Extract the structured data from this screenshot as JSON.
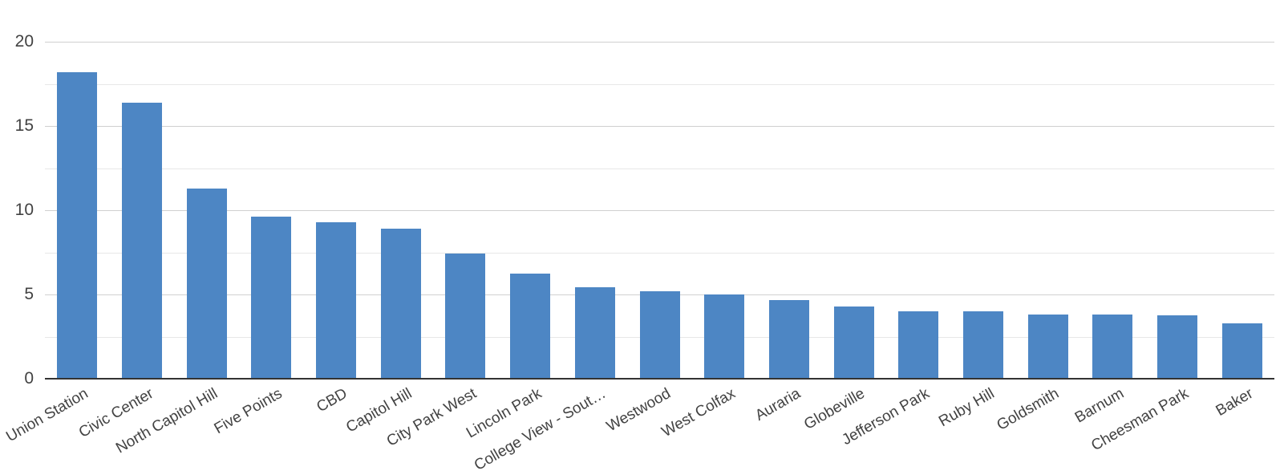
{
  "chart_data": {
    "type": "bar",
    "title": "",
    "xlabel": "",
    "ylabel": "",
    "categories": [
      "Union Station",
      "Civic Center",
      "North Capitol Hill",
      "Five Points",
      "CBD",
      "Capitol Hill",
      "City Park West",
      "Lincoln Park",
      "College View - Sout…",
      "Westwood",
      "West Colfax",
      "Auraria",
      "Globeville",
      "Jefferson Park",
      "Ruby Hill",
      "Goldsmith",
      "Barnum",
      "Cheesman Park",
      "Baker"
    ],
    "values": [
      18.2,
      16.4,
      11.3,
      9.6,
      9.3,
      8.9,
      7.45,
      6.25,
      5.45,
      5.2,
      5.0,
      4.65,
      4.3,
      4.0,
      4.0,
      3.8,
      3.8,
      3.75,
      3.3
    ],
    "ylim": [
      0,
      21
    ],
    "yticks": [
      0,
      5,
      10,
      15,
      20
    ],
    "y_tick_labels": [
      "0",
      "5",
      "10",
      "15",
      "20"
    ],
    "minor_gridline_step": 2.5,
    "grid": true,
    "legend_position": "none",
    "x_label_rotation_deg": -30,
    "colors": {
      "bar": "#4d86c4",
      "axis_line": "#333333",
      "gridline_major": "#d0d0d0",
      "gridline_minor": "#e7e7e7",
      "tick_label": "#424242"
    }
  }
}
